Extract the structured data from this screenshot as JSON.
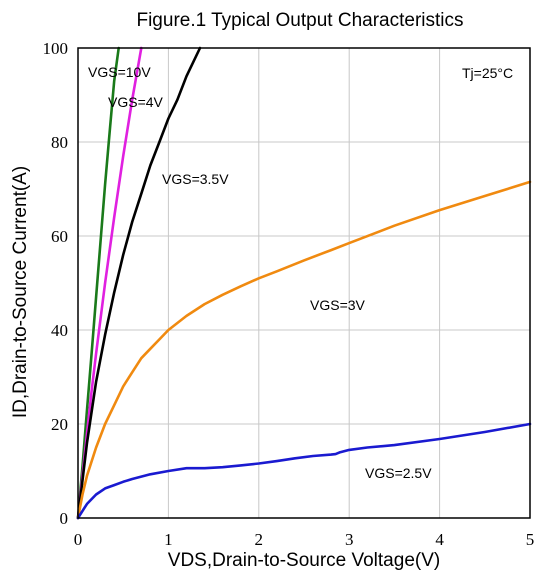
{
  "chart_data": {
    "type": "line",
    "title": "Figure.1 Typical Output Characteristics",
    "xlabel": "VDS,Drain-to-Source Voltage(V)",
    "ylabel": "ID,Drain-to-Source Current(A)",
    "xlim": [
      0,
      5
    ],
    "ylim": [
      0,
      100
    ],
    "x_ticks": [
      "0",
      "1",
      "2",
      "3",
      "4",
      "5"
    ],
    "y_ticks": [
      "0",
      "20",
      "40",
      "60",
      "80",
      "100"
    ],
    "grid": true,
    "annotations": [
      {
        "text": "Tj=25°C"
      }
    ],
    "series": [
      {
        "name": "VGS=10V",
        "color": "#1a7a1a",
        "x": [
          0,
          0.05,
          0.1,
          0.15,
          0.2,
          0.25,
          0.3,
          0.35,
          0.4,
          0.45
        ],
        "y": [
          0,
          11,
          23,
          35,
          47,
          59,
          71,
          82,
          93,
          100
        ]
      },
      {
        "name": "VGS=4V",
        "color": "#e020e0",
        "x": [
          0,
          0.05,
          0.1,
          0.15,
          0.2,
          0.3,
          0.4,
          0.5,
          0.6,
          0.7
        ],
        "y": [
          0,
          9,
          18,
          27,
          35,
          50,
          64,
          77,
          89,
          100
        ]
      },
      {
        "name": "VGS=3.5V",
        "color": "#000000",
        "x": [
          0,
          0.05,
          0.1,
          0.2,
          0.3,
          0.4,
          0.5,
          0.6,
          0.7,
          0.8,
          0.9,
          1.0,
          1.1,
          1.2,
          1.35
        ],
        "y": [
          0,
          8,
          16,
          29,
          39,
          48,
          56,
          63,
          69,
          75,
          80,
          85,
          89,
          94,
          100
        ]
      },
      {
        "name": "VGS=3V",
        "color": "#f08a10",
        "x": [
          0,
          0.05,
          0.1,
          0.2,
          0.3,
          0.4,
          0.5,
          0.6,
          0.7,
          0.8,
          0.9,
          1.0,
          1.2,
          1.4,
          1.6,
          1.8,
          2.0,
          2.2,
          2.5,
          2.8,
          3.0,
          3.5,
          4.0,
          4.5,
          5.0
        ],
        "y": [
          0,
          5,
          9,
          15,
          20,
          24,
          28,
          31,
          34,
          36,
          38,
          40,
          43,
          45.5,
          47.5,
          49.3,
          51,
          52.5,
          54.8,
          57,
          58.5,
          62.2,
          65.5,
          68.5,
          71.5
        ]
      },
      {
        "name": "VGS=2.5V",
        "color": "#1a1ad0",
        "x": [
          0,
          0.05,
          0.1,
          0.2,
          0.3,
          0.4,
          0.5,
          0.6,
          0.8,
          1.0,
          1.2,
          1.4,
          1.6,
          1.8,
          2.0,
          2.2,
          2.4,
          2.6,
          2.8,
          2.85,
          2.9,
          3.0,
          3.2,
          3.5,
          4.0,
          4.5,
          5.0
        ],
        "y": [
          0,
          1.5,
          3,
          5,
          6.3,
          7,
          7.7,
          8.3,
          9.3,
          10,
          10.6,
          10.6,
          10.8,
          11.2,
          11.6,
          12.1,
          12.7,
          13.2,
          13.5,
          13.6,
          14,
          14.5,
          15,
          15.5,
          16.8,
          18.3,
          20
        ]
      }
    ],
    "series_labels": [
      {
        "series": "VGS=10V",
        "text": "VGS=10V"
      },
      {
        "series": "VGS=4V",
        "text": "VGS=4V"
      },
      {
        "series": "VGS=3.5V",
        "text": "VGS=3.5V"
      },
      {
        "series": "VGS=3V",
        "text": "VGS=3V"
      },
      {
        "series": "VGS=2.5V",
        "text": "VGS=2.5V"
      }
    ]
  }
}
